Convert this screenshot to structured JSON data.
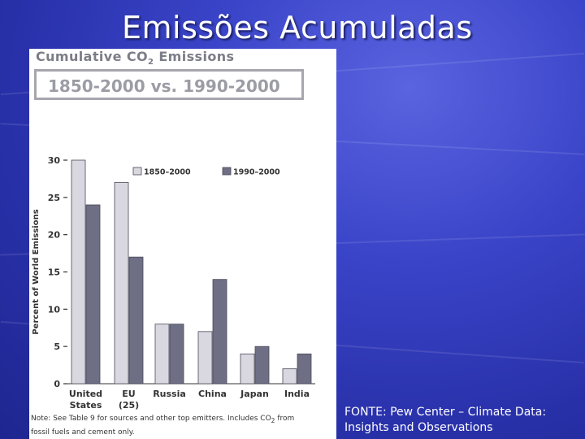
{
  "slide": {
    "title": "Emissões Acumuladas",
    "source": "FONTE: Pew Center – Climate Data: Insights and Observations"
  },
  "colors": {
    "series_1850": "#d9d8e0",
    "series_1990": "#6e6e84",
    "outline": "#4a4a5a",
    "text": "#333333"
  },
  "panel": {
    "title": "Cumulative CO",
    "title_sub": "2",
    "title_end": " Emissions",
    "period_label": "1850-2000 vs. 1990-2000",
    "note_line1": "Note: See Table 9 for sources and other top emitters. Includes CO",
    "note_sub": "2",
    "note_line1_end": " from",
    "note_line2": "fossil fuels and cement only."
  },
  "chart_data": {
    "type": "bar",
    "ylabel": "Percent of World Emissions",
    "ylim": [
      0,
      30
    ],
    "yticks": [
      0,
      5,
      10,
      15,
      20,
      25,
      30
    ],
    "categories": [
      {
        "line1": "United",
        "line2": "States"
      },
      {
        "line1": "EU",
        "line2": "(25)"
      },
      {
        "line1": "Russia",
        "line2": ""
      },
      {
        "line1": "China",
        "line2": ""
      },
      {
        "line1": "Japan",
        "line2": ""
      },
      {
        "line1": "India",
        "line2": ""
      }
    ],
    "series": [
      {
        "name": "1850–2000",
        "values": [
          30,
          27,
          8,
          7,
          4,
          2
        ]
      },
      {
        "name": "1990–2000",
        "values": [
          24,
          17,
          8,
          14,
          5,
          4
        ]
      }
    ],
    "legend": "top-right",
    "grid": false
  }
}
